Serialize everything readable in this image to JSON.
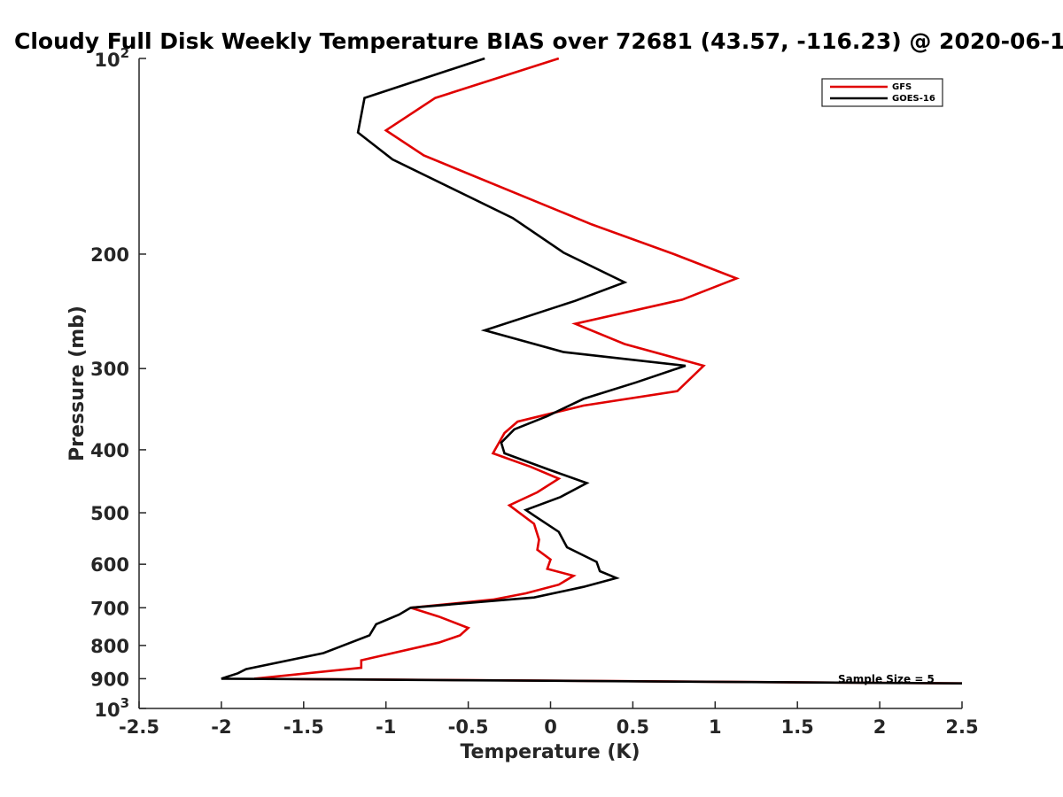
{
  "chart_data": {
    "type": "line",
    "title": "Cloudy Full Disk Weekly Temperature BIAS over 72681 (43.57, -116.23) @ 2020-06-1",
    "xlabel": "Temperature (K)",
    "ylabel": "Pressure (mb)",
    "xlim": [
      -2.5,
      2.5
    ],
    "ylim": [
      100,
      1000
    ],
    "y_scale": "log",
    "y_reversed": true,
    "x_ticks": [
      {
        "value": -2.5,
        "label": "-2.5"
      },
      {
        "value": -2,
        "label": "-2"
      },
      {
        "value": -1.5,
        "label": "-1.5"
      },
      {
        "value": -1,
        "label": "-1"
      },
      {
        "value": -0.5,
        "label": "-0.5"
      },
      {
        "value": 0,
        "label": "0"
      },
      {
        "value": 0.5,
        "label": "0.5"
      },
      {
        "value": 1,
        "label": "1"
      },
      {
        "value": 1.5,
        "label": "1.5"
      },
      {
        "value": 2,
        "label": "2"
      },
      {
        "value": 2.5,
        "label": "2.5"
      }
    ],
    "y_ticks": [
      {
        "value": 200,
        "label": "200"
      },
      {
        "value": 300,
        "label": "300"
      },
      {
        "value": 400,
        "label": "400"
      },
      {
        "value": 500,
        "label": "500"
      },
      {
        "value": 600,
        "label": "600"
      },
      {
        "value": 700,
        "label": "700"
      },
      {
        "value": 800,
        "label": "800"
      },
      {
        "value": 900,
        "label": "900"
      }
    ],
    "y_decade_ticks": [
      {
        "value": 100,
        "base": "10",
        "exp": "2"
      },
      {
        "value": 1000,
        "base": "10",
        "exp": "3"
      }
    ],
    "grid": false,
    "legend_position": "top-right",
    "series": [
      {
        "name": "GFS",
        "color": "#e00000",
        "points": [
          [
            0.05,
            100
          ],
          [
            -0.7,
            115
          ],
          [
            -1.0,
            129
          ],
          [
            -0.77,
            141
          ],
          [
            0.25,
            180
          ],
          [
            0.75,
            200
          ],
          [
            1.13,
            218
          ],
          [
            0.8,
            235
          ],
          [
            0.15,
            256
          ],
          [
            0.45,
            275
          ],
          [
            0.93,
            297
          ],
          [
            0.77,
            325
          ],
          [
            0.2,
            342
          ],
          [
            -0.2,
            362
          ],
          [
            -0.28,
            377
          ],
          [
            -0.35,
            405
          ],
          [
            -0.12,
            425
          ],
          [
            0.05,
            443
          ],
          [
            -0.08,
            465
          ],
          [
            -0.25,
            487
          ],
          [
            -0.1,
            520
          ],
          [
            -0.07,
            550
          ],
          [
            -0.08,
            570
          ],
          [
            0.0,
            590
          ],
          [
            -0.02,
            610
          ],
          [
            0.14,
            625
          ],
          [
            0.05,
            645
          ],
          [
            -0.15,
            665
          ],
          [
            -0.35,
            680
          ],
          [
            -0.85,
            700
          ],
          [
            -0.68,
            722
          ],
          [
            -0.5,
            752
          ],
          [
            -0.55,
            772
          ],
          [
            -0.68,
            792
          ],
          [
            -1.15,
            843
          ],
          [
            -1.15,
            866
          ],
          [
            -1.8,
            900
          ],
          [
            2.5,
            915
          ]
        ]
      },
      {
        "name": "GOES-16",
        "color": "#000000",
        "points": [
          [
            -0.4,
            100
          ],
          [
            -1.13,
            115
          ],
          [
            -1.17,
            130
          ],
          [
            -0.96,
            143
          ],
          [
            -0.23,
            176
          ],
          [
            0.08,
            199
          ],
          [
            0.45,
            221
          ],
          [
            0.15,
            236
          ],
          [
            -0.4,
            262
          ],
          [
            0.08,
            283
          ],
          [
            0.82,
            297
          ],
          [
            0.52,
            315
          ],
          [
            0.2,
            334
          ],
          [
            -0.02,
            355
          ],
          [
            -0.22,
            372
          ],
          [
            -0.3,
            390
          ],
          [
            -0.28,
            405
          ],
          [
            0.0,
            430
          ],
          [
            0.22,
            450
          ],
          [
            0.06,
            473
          ],
          [
            -0.15,
            495
          ],
          [
            -0.1,
            505
          ],
          [
            0.05,
            535
          ],
          [
            0.1,
            565
          ],
          [
            0.28,
            595
          ],
          [
            0.3,
            615
          ],
          [
            0.4,
            630
          ],
          [
            0.2,
            650
          ],
          [
            -0.1,
            675
          ],
          [
            -0.85,
            700
          ],
          [
            -0.92,
            717
          ],
          [
            -1.06,
            742
          ],
          [
            -1.1,
            772
          ],
          [
            -1.38,
            822
          ],
          [
            -1.85,
            870
          ],
          [
            -1.9,
            883
          ],
          [
            -2.0,
            900
          ],
          [
            2.5,
            915
          ]
        ]
      }
    ],
    "annotation": "Sample Size = 5"
  }
}
